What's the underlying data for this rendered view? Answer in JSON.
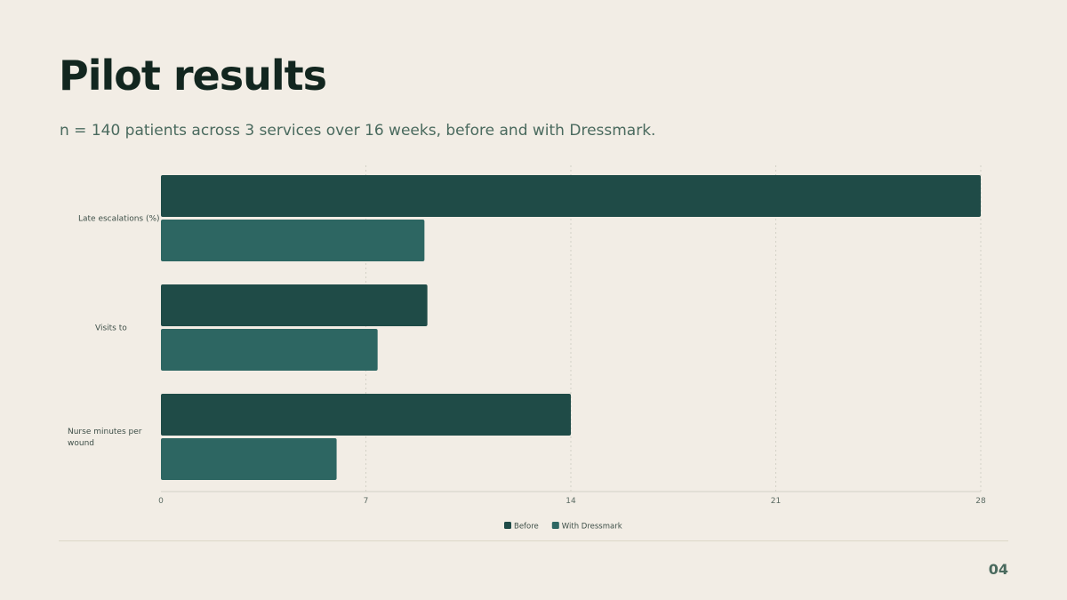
{
  "slide": {
    "title": "Pilot results",
    "subtitle": "n = 140 patients across 3 services over 16 weeks, before and with Dressmark.",
    "page_number": "04"
  },
  "colors": {
    "background": "#f2ede5",
    "before": "#1f4b47",
    "with_dressmark": "#2d6662",
    "grid": "#d3d1c6",
    "axis_text": "#5b6b63"
  },
  "chart_data": {
    "type": "bar",
    "orientation": "horizontal",
    "categories": [
      "Late escalations (%)",
      "Visits to",
      "Nurse minutes per wound"
    ],
    "series": [
      {
        "name": "Before",
        "values": [
          28,
          9.1,
          14
        ]
      },
      {
        "name": "With Dressmark",
        "values": [
          9,
          7.4,
          6
        ]
      }
    ],
    "xlim": [
      0,
      28
    ],
    "xticks": [
      0,
      7,
      14,
      21,
      28
    ],
    "grid": "vertical dotted",
    "legend": "bottom-center"
  }
}
